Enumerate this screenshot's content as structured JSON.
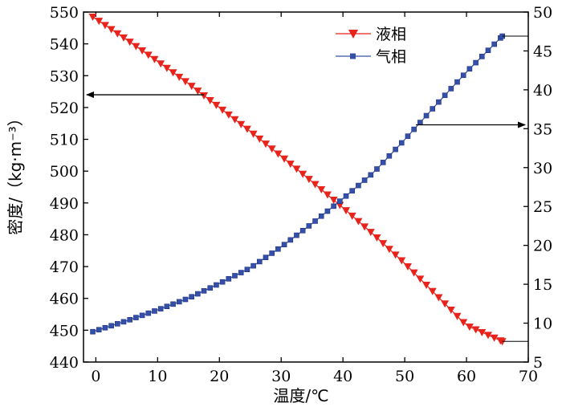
{
  "chart_data": {
    "type": "line",
    "title": "",
    "xlabel": "温度/℃",
    "ylabel_left": "密度/（kg·m⁻³）",
    "xlim": [
      -2,
      70
    ],
    "ylim_left": [
      440,
      550
    ],
    "ylim_right": [
      5,
      50
    ],
    "x_ticks": [
      0,
      10,
      20,
      30,
      40,
      50,
      60,
      70
    ],
    "y_left_ticks": [
      440,
      450,
      460,
      470,
      480,
      490,
      500,
      510,
      520,
      530,
      540,
      550
    ],
    "y_right_ticks": [
      5,
      10,
      15,
      20,
      25,
      30,
      35,
      40,
      45,
      50
    ],
    "grid": false,
    "legend_position": "top-right",
    "series": [
      {
        "name": "液相",
        "axis": "left",
        "color": "#e8231c",
        "marker": "triangle-down",
        "x_start": -0.5,
        "x_end": 65.8,
        "step": 1,
        "x": [
          -0.5,
          5,
          10,
          15,
          20,
          25,
          30,
          35,
          40,
          45,
          50,
          55,
          60,
          65.8
        ],
        "values": [
          548.5,
          541.3,
          534.5,
          527.5,
          520,
          512.5,
          504.7,
          496.7,
          488.5,
          480,
          471,
          461.3,
          451.5,
          446.5
        ]
      },
      {
        "name": "气相",
        "axis": "right",
        "color": "#3450a8",
        "marker": "square",
        "x_start": -0.5,
        "x_end": 65.8,
        "step": 1,
        "x": [
          -0.5,
          5,
          10,
          15,
          20,
          25,
          30,
          35,
          40,
          45,
          50,
          55,
          60,
          65.8
        ],
        "values": [
          8.9,
          10.3,
          11.7,
          13.2,
          15.1,
          17.1,
          19.8,
          22.8,
          26.0,
          29.4,
          33.6,
          38.0,
          42.3,
          46.9
        ]
      }
    ],
    "annotations": [
      {
        "type": "arrow",
        "direction": "left",
        "y_axis": "left",
        "y": 524
      },
      {
        "type": "arrow",
        "direction": "right",
        "y_axis": "right",
        "y": 35.5
      }
    ]
  }
}
